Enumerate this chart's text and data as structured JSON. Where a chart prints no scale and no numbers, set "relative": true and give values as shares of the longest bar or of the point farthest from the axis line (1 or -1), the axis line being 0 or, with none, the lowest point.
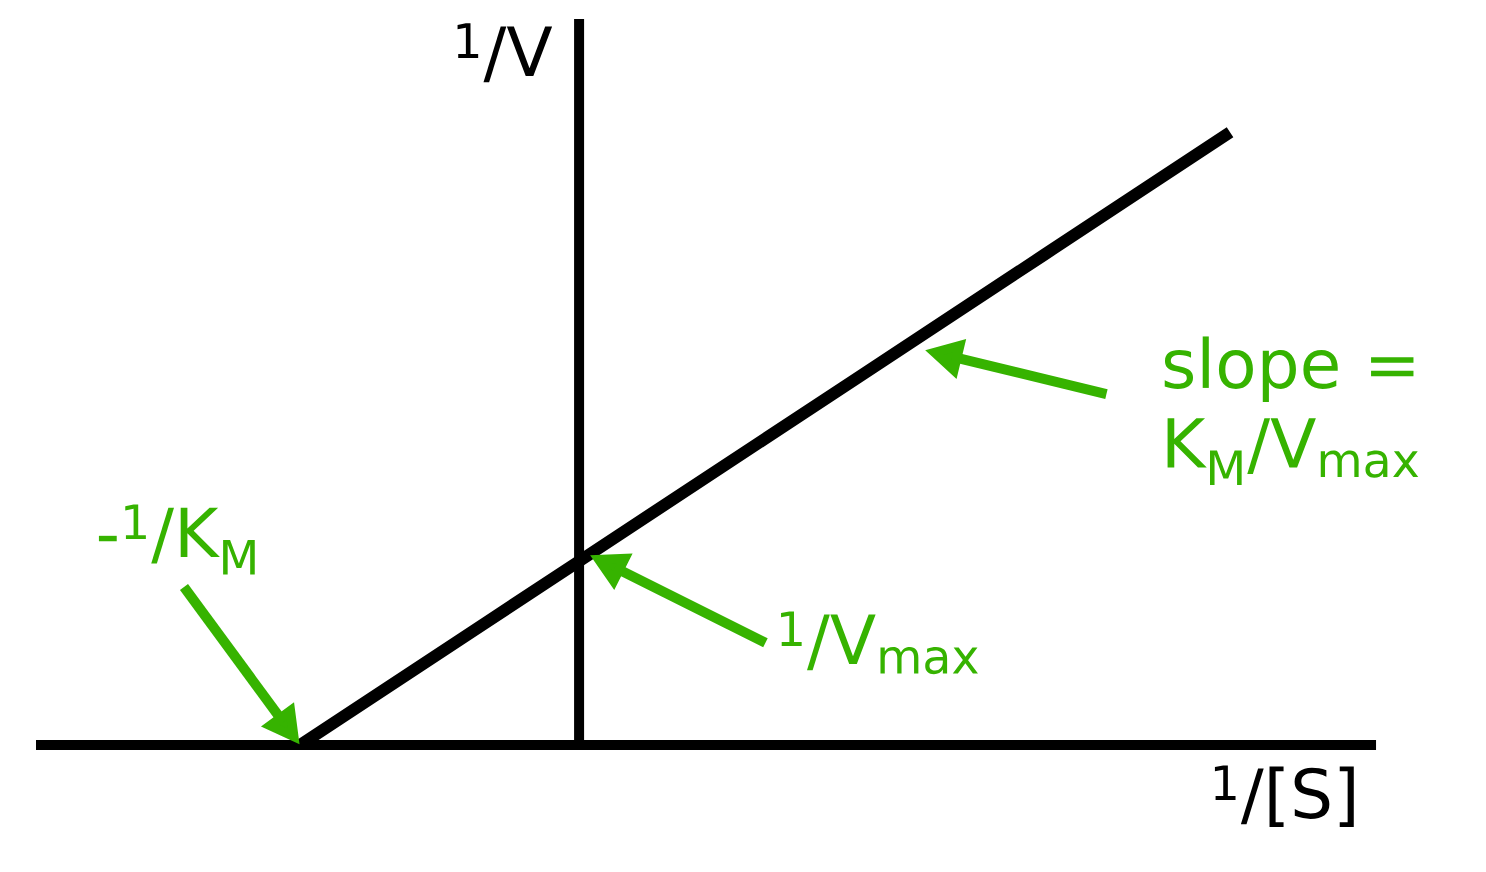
{
  "chart_data": {
    "type": "line",
    "relative": true,
    "xlabel": "$^{1}$/[S]",
    "ylabel": "$^{1}$/V",
    "categories": [
      null,
      null,
      null,
      null,
      null,
      null,
      null,
      null,
      null,
      null,
      null
    ],
    "series": [
      {
        "color": "#000000",
        "values": [
          0,
          0.1,
          0.2,
          0.3,
          0.4,
          0.5,
          0.6,
          0.7,
          0.8,
          0.9,
          1
        ]
      }
    ],
    "annotations": [
      "-$^{1}$/K$_{M}$",
      "$^{1}$/V$_{max}$",
      "slope = K$_{M}$/V$_{max}$"
    ],
    "line_style": "solid"
  }
}
